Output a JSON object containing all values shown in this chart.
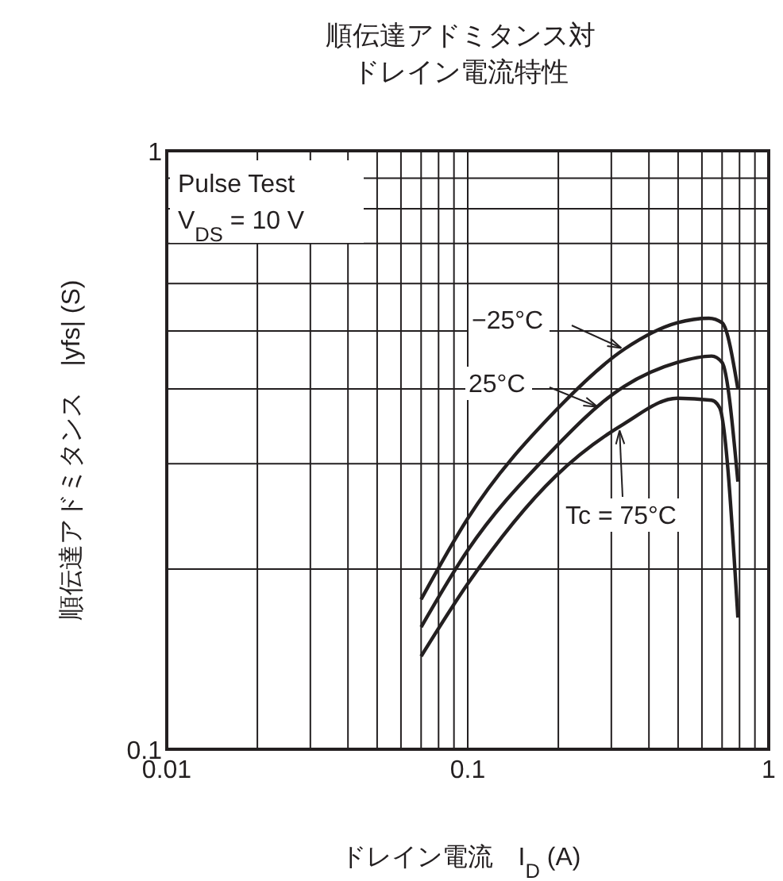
{
  "chart_data": {
    "type": "line",
    "title": "順伝達アドミタンス対ドレイン電流特性",
    "xlabel": "ドレイン電流　I$_{D}$ (A)",
    "ylabel": "順伝達アドミタンス　|yfs| (S)",
    "annotations": [
      "Pulse Test",
      "V$_{DS}$ = 10 V"
    ],
    "log": "xy",
    "grid": true,
    "legend": "top",
    "marker": "none",
    "line_style": "solid",
    "xlim": [
      0.01,
      1
    ],
    "ylim": [
      0.1,
      1
    ],
    "xticks": [
      0.01,
      {
        "value": 0.02,
        "label": null
      },
      {
        "value": 0.03,
        "label": null
      },
      {
        "value": 0.04,
        "label": null
      },
      {
        "value": 0.05,
        "label": null
      },
      {
        "value": 0.06,
        "label": null
      },
      {
        "value": 0.07,
        "label": null
      },
      {
        "value": 0.08,
        "label": null
      },
      {
        "value": 0.09,
        "label": null
      },
      0.1,
      {
        "value": 0.2,
        "label": null
      },
      {
        "value": 0.3,
        "label": null
      },
      {
        "value": 0.4,
        "label": null
      },
      {
        "value": 0.5,
        "label": null
      },
      {
        "value": 0.6,
        "label": null
      },
      {
        "value": 0.7,
        "label": null
      },
      {
        "value": 0.8,
        "label": null
      },
      {
        "value": 0.9,
        "label": null
      },
      1
    ],
    "yticks": [
      0.1,
      {
        "value": 0.2,
        "label": null
      },
      {
        "value": 0.3,
        "label": null
      },
      {
        "value": 0.4,
        "label": null
      },
      {
        "value": 0.5,
        "label": null
      },
      {
        "value": 0.6,
        "label": null
      },
      {
        "value": 0.7,
        "label": null
      },
      {
        "value": 0.8,
        "label": null
      },
      {
        "value": 0.9,
        "label": null
      },
      1
    ],
    "series": [
      {
        "name": "−25°C",
        "color": "#231f20",
        "x": [
          0.07,
          0.1,
          0.196,
          0.331,
          0.497,
          0.633,
          0.7,
          0.79
        ],
        "values": [
          0.178,
          0.243,
          0.368,
          0.466,
          0.516,
          0.525,
          0.516,
          0.4
        ]
      },
      {
        "name": "25°C",
        "color": "#231f20",
        "x": [
          0.07,
          0.1,
          0.181,
          0.331,
          0.497,
          0.646,
          0.7,
          0.79
        ],
        "values": [
          0.16,
          0.215,
          0.307,
          0.404,
          0.443,
          0.454,
          0.443,
          0.28
        ]
      },
      {
        "name": "Tc = 75°C",
        "color": "#231f20",
        "x": [
          0.07,
          0.1,
          0.196,
          0.331,
          0.497,
          0.646,
          0.687,
          0.79
        ],
        "values": [
          0.143,
          0.189,
          0.286,
          0.35,
          0.386,
          0.383,
          0.372,
          0.166
        ]
      }
    ]
  }
}
